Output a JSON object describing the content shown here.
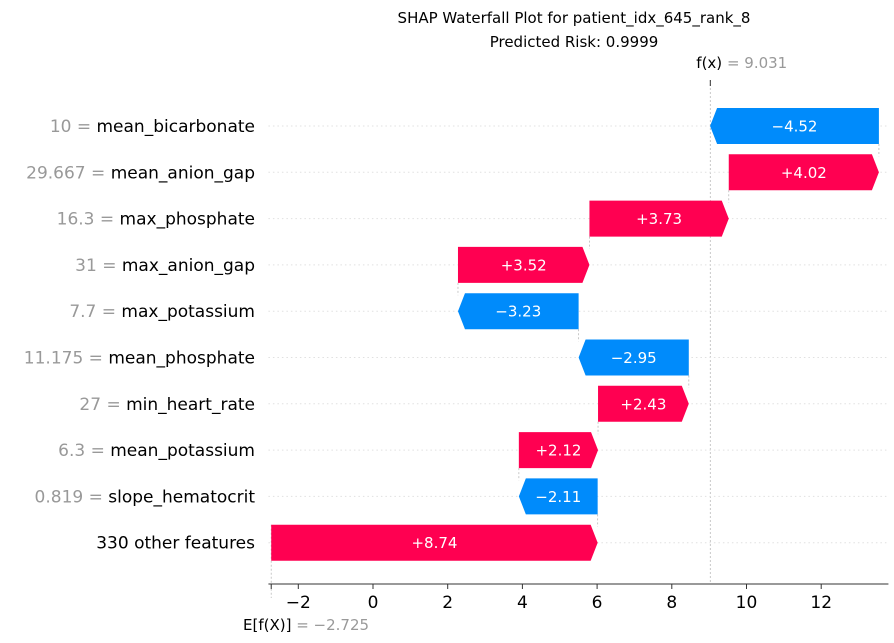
{
  "chart_data": {
    "type": "waterfall",
    "title": "SHAP Waterfall Plot for patient_idx_645_rank_8",
    "subtitle": "Predicted Risk: 0.9999",
    "base_value": -2.725,
    "final_value": 9.031,
    "base_label_prefix": "E[f(X)]",
    "base_label_value": "= −2.725",
    "final_label_prefix": "f(x)",
    "final_label_value": "= 9.031",
    "xlim": [
      -2.8,
      13.8
    ],
    "x_ticks": [
      -2,
      0,
      2,
      4,
      6,
      8,
      10,
      12
    ],
    "x_tick_labels": [
      "−2",
      "0",
      "2",
      "4",
      "6",
      "8",
      "10",
      "12"
    ],
    "features": [
      {
        "value": "10",
        "name": "mean_bicarbonate",
        "shap": -4.52,
        "label": "−4.52"
      },
      {
        "value": "29.667",
        "name": "mean_anion_gap",
        "shap": 4.02,
        "label": "+4.02"
      },
      {
        "value": "16.3",
        "name": "max_phosphate",
        "shap": 3.73,
        "label": "+3.73"
      },
      {
        "value": "31",
        "name": "max_anion_gap",
        "shap": 3.52,
        "label": "+3.52"
      },
      {
        "value": "7.7",
        "name": "max_potassium",
        "shap": -3.23,
        "label": "−3.23"
      },
      {
        "value": "11.175",
        "name": "mean_phosphate",
        "shap": -2.95,
        "label": "−2.95"
      },
      {
        "value": "27",
        "name": "min_heart_rate",
        "shap": 2.43,
        "label": "+2.43"
      },
      {
        "value": "6.3",
        "name": "mean_potassium",
        "shap": 2.12,
        "label": "+2.12"
      },
      {
        "value": "0.819",
        "name": "slope_hematocrit",
        "shap": -2.11,
        "label": "−2.11"
      },
      {
        "value": "",
        "name": "330 other features",
        "shap": 8.74,
        "label": "+8.74"
      }
    ],
    "colors": {
      "positive": "#ff0051",
      "negative": "#008bfb",
      "value_text": "#999999"
    }
  }
}
